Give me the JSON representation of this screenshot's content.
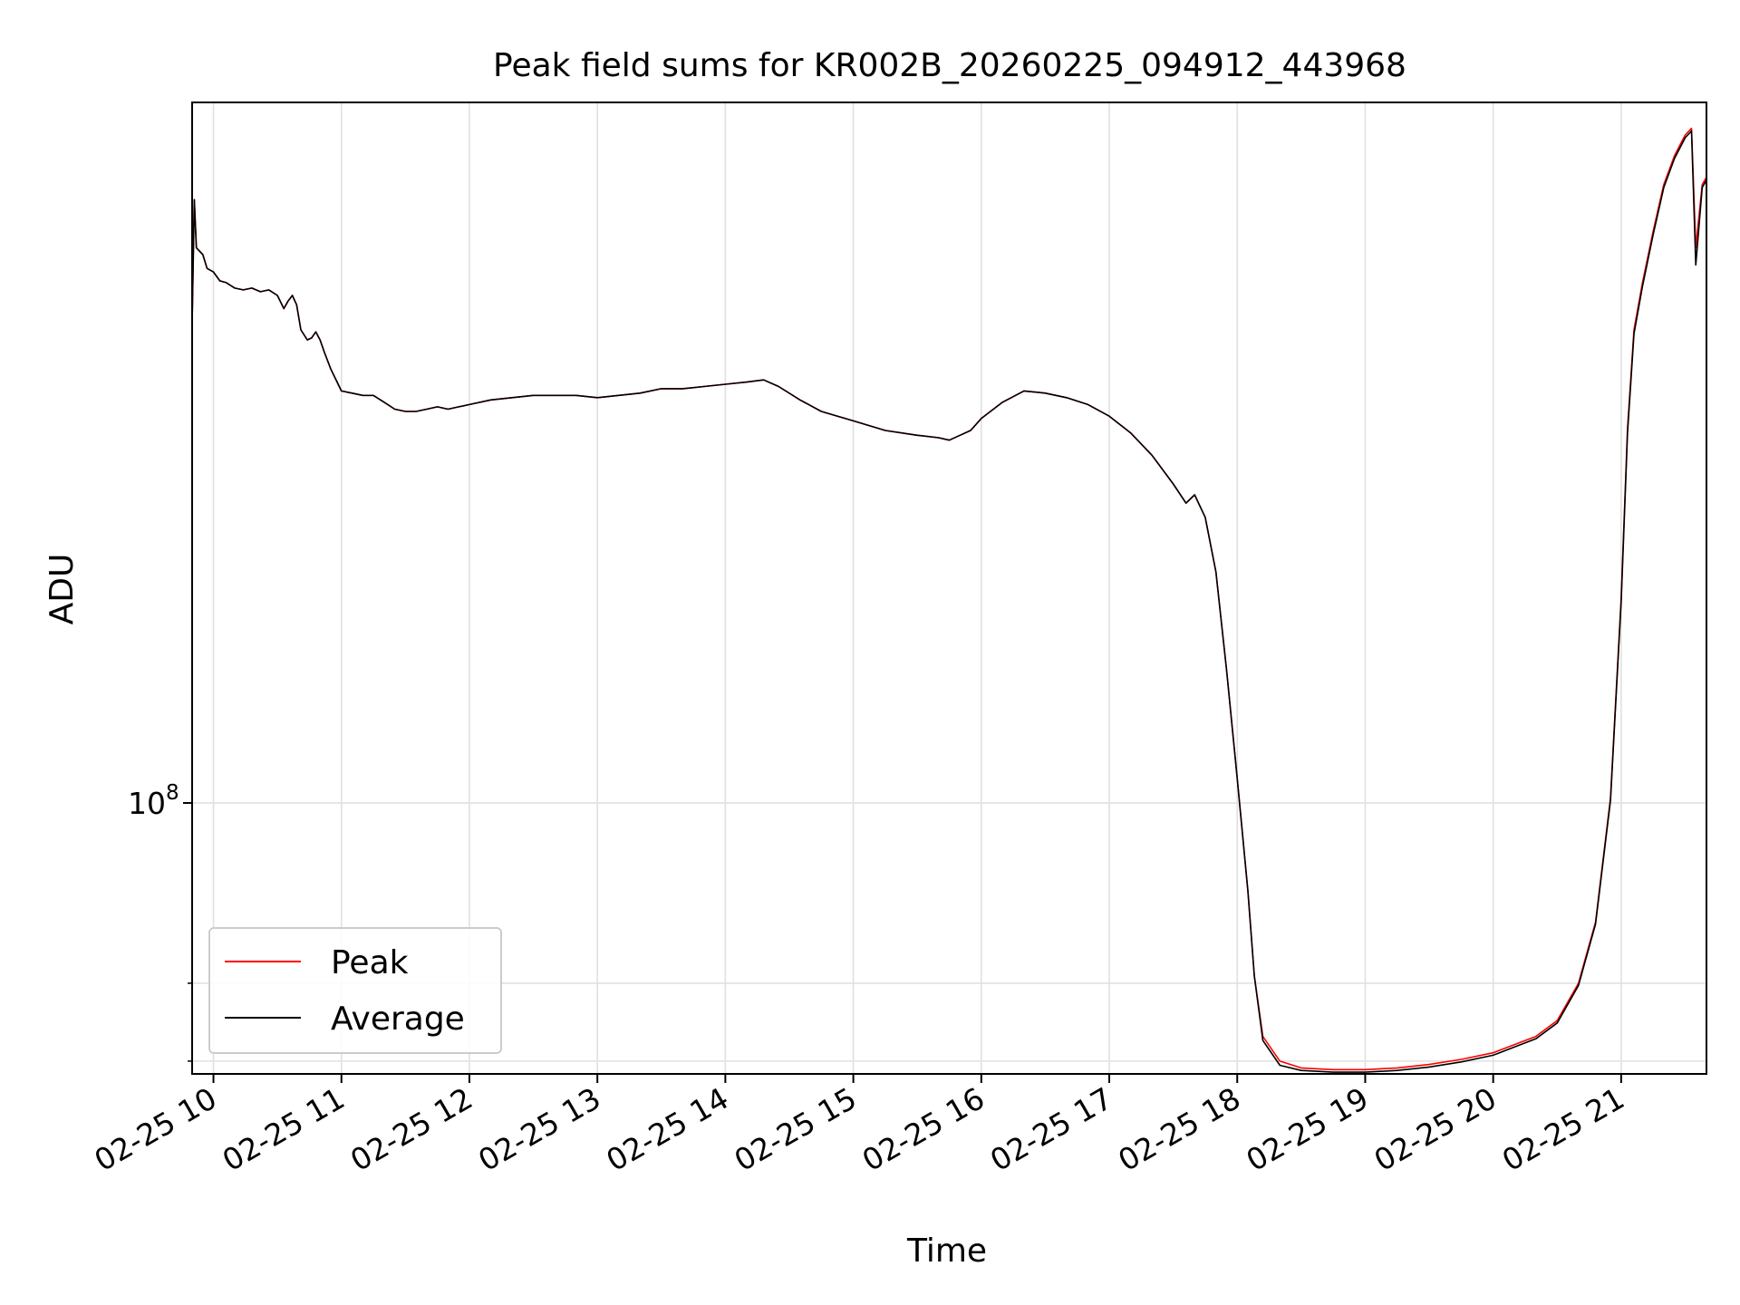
{
  "chart_data": {
    "type": "line",
    "title": "Peak field sums for KR002B_20260225_094912_443968",
    "xlabel": "Time",
    "ylabel": "ADU",
    "x_ticks": [
      "02-25 10",
      "02-25 11",
      "02-25 12",
      "02-25 13",
      "02-25 14",
      "02-25 15",
      "02-25 16",
      "02-25 17",
      "02-25 18",
      "02-25 19",
      "02-25 20",
      "02-25 21"
    ],
    "x_range": [
      "2026-02-25 09:50",
      "2026-02-25 21:40"
    ],
    "y_scale": "log",
    "y_range": [
      58500000,
      400000000
    ],
    "y_major_tick": {
      "value": 100000000,
      "base": "10",
      "exponent": "8"
    },
    "y_minor_ticks": [
      60000000,
      70000000
    ],
    "grid": true,
    "legend_position": "lower-left",
    "series": [
      {
        "name": "Peak",
        "color": "#ff0000",
        "points": [
          [
            "09:50",
            258000000
          ],
          [
            "09:51",
            330000000
          ],
          [
            "09:52",
            300000000
          ],
          [
            "09:55",
            296000000
          ],
          [
            "09:57",
            288000000
          ],
          [
            "10:00",
            286000000
          ],
          [
            "10:03",
            281000000
          ],
          [
            "10:06",
            280000000
          ],
          [
            "10:10",
            277000000
          ],
          [
            "10:14",
            276000000
          ],
          [
            "10:18",
            277000000
          ],
          [
            "10:22",
            275000000
          ],
          [
            "10:26",
            276000000
          ],
          [
            "10:30",
            273000000
          ],
          [
            "10:33",
            266000000
          ],
          [
            "10:35",
            270000000
          ],
          [
            "10:37",
            273000000
          ],
          [
            "10:39",
            268000000
          ],
          [
            "10:41",
            255000000
          ],
          [
            "10:44",
            250000000
          ],
          [
            "10:46",
            251000000
          ],
          [
            "10:48",
            254000000
          ],
          [
            "10:50",
            250000000
          ],
          [
            "10:52",
            244000000
          ],
          [
            "10:55",
            236000000
          ],
          [
            "10:58",
            230000000
          ],
          [
            "11:00",
            226000000
          ],
          [
            "11:05",
            225000000
          ],
          [
            "11:10",
            224000000
          ],
          [
            "11:15",
            224000000
          ],
          [
            "11:20",
            221000000
          ],
          [
            "11:25",
            218000000
          ],
          [
            "11:30",
            217000000
          ],
          [
            "11:35",
            217000000
          ],
          [
            "11:40",
            218000000
          ],
          [
            "11:45",
            219000000
          ],
          [
            "11:50",
            218000000
          ],
          [
            "11:55",
            219000000
          ],
          [
            "12:00",
            220000000
          ],
          [
            "12:10",
            222000000
          ],
          [
            "12:20",
            223000000
          ],
          [
            "12:30",
            224000000
          ],
          [
            "12:40",
            224000000
          ],
          [
            "12:50",
            224000000
          ],
          [
            "13:00",
            223000000
          ],
          [
            "13:10",
            224000000
          ],
          [
            "13:20",
            225000000
          ],
          [
            "13:30",
            227000000
          ],
          [
            "13:40",
            227000000
          ],
          [
            "13:50",
            228000000
          ],
          [
            "14:00",
            229000000
          ],
          [
            "14:10",
            230000000
          ],
          [
            "14:18",
            231000000
          ],
          [
            "14:25",
            228000000
          ],
          [
            "14:35",
            222000000
          ],
          [
            "14:45",
            217000000
          ],
          [
            "15:00",
            213000000
          ],
          [
            "15:15",
            209000000
          ],
          [
            "15:30",
            207000000
          ],
          [
            "15:40",
            206000000
          ],
          [
            "15:45",
            205000000
          ],
          [
            "15:50",
            207000000
          ],
          [
            "15:55",
            209000000
          ],
          [
            "16:00",
            214000000
          ],
          [
            "16:10",
            221000000
          ],
          [
            "16:20",
            226000000
          ],
          [
            "16:30",
            225000000
          ],
          [
            "16:40",
            223000000
          ],
          [
            "16:50",
            220000000
          ],
          [
            "17:00",
            215000000
          ],
          [
            "17:10",
            208000000
          ],
          [
            "17:20",
            199000000
          ],
          [
            "17:30",
            188000000
          ],
          [
            "17:36",
            181000000
          ],
          [
            "17:40",
            184000000
          ],
          [
            "17:45",
            176000000
          ],
          [
            "17:50",
            158000000
          ],
          [
            "17:55",
            130000000
          ],
          [
            "18:00",
            105000000
          ],
          [
            "18:05",
            84000000
          ],
          [
            "18:08",
            71000000
          ],
          [
            "18:12",
            63000000
          ],
          [
            "18:20",
            60000000
          ],
          [
            "18:30",
            59200000
          ],
          [
            "18:45",
            59000000
          ],
          [
            "19:00",
            59000000
          ],
          [
            "19:15",
            59200000
          ],
          [
            "19:30",
            59600000
          ],
          [
            "19:45",
            60200000
          ],
          [
            "20:00",
            61000000
          ],
          [
            "20:10",
            62000000
          ],
          [
            "20:20",
            63000000
          ],
          [
            "20:30",
            65000000
          ],
          [
            "20:40",
            70000000
          ],
          [
            "20:48",
            79000000
          ],
          [
            "20:55",
            101000000
          ],
          [
            "21:00",
            150000000
          ],
          [
            "21:03",
            210000000
          ],
          [
            "21:06",
            255000000
          ],
          [
            "21:10",
            280000000
          ],
          [
            "21:15",
            310000000
          ],
          [
            "21:20",
            340000000
          ],
          [
            "21:25",
            360000000
          ],
          [
            "21:30",
            375000000
          ],
          [
            "21:33",
            380000000
          ],
          [
            "21:35",
            300000000
          ],
          [
            "21:38",
            340000000
          ],
          [
            "21:40",
            345000000
          ]
        ]
      },
      {
        "name": "Average",
        "color": "#000000",
        "points": [
          [
            "09:50",
            258000000
          ],
          [
            "09:51",
            330000000
          ],
          [
            "09:52",
            300000000
          ],
          [
            "09:55",
            296000000
          ],
          [
            "09:57",
            288000000
          ],
          [
            "10:00",
            286000000
          ],
          [
            "10:03",
            281000000
          ],
          [
            "10:06",
            280000000
          ],
          [
            "10:10",
            277000000
          ],
          [
            "10:14",
            276000000
          ],
          [
            "10:18",
            277000000
          ],
          [
            "10:22",
            275000000
          ],
          [
            "10:26",
            276000000
          ],
          [
            "10:30",
            273000000
          ],
          [
            "10:33",
            266000000
          ],
          [
            "10:35",
            270000000
          ],
          [
            "10:37",
            273000000
          ],
          [
            "10:39",
            268000000
          ],
          [
            "10:41",
            255000000
          ],
          [
            "10:44",
            250000000
          ],
          [
            "10:46",
            251000000
          ],
          [
            "10:48",
            254000000
          ],
          [
            "10:50",
            250000000
          ],
          [
            "10:52",
            244000000
          ],
          [
            "10:55",
            236000000
          ],
          [
            "10:58",
            230000000
          ],
          [
            "11:00",
            226000000
          ],
          [
            "11:05",
            225000000
          ],
          [
            "11:10",
            224000000
          ],
          [
            "11:15",
            224000000
          ],
          [
            "11:20",
            221000000
          ],
          [
            "11:25",
            218000000
          ],
          [
            "11:30",
            217000000
          ],
          [
            "11:35",
            217000000
          ],
          [
            "11:40",
            218000000
          ],
          [
            "11:45",
            219000000
          ],
          [
            "11:50",
            218000000
          ],
          [
            "11:55",
            219000000
          ],
          [
            "12:00",
            220000000
          ],
          [
            "12:10",
            222000000
          ],
          [
            "12:20",
            223000000
          ],
          [
            "12:30",
            224000000
          ],
          [
            "12:40",
            224000000
          ],
          [
            "12:50",
            224000000
          ],
          [
            "13:00",
            223000000
          ],
          [
            "13:10",
            224000000
          ],
          [
            "13:20",
            225000000
          ],
          [
            "13:30",
            227000000
          ],
          [
            "13:40",
            227000000
          ],
          [
            "13:50",
            228000000
          ],
          [
            "14:00",
            229000000
          ],
          [
            "14:10",
            230000000
          ],
          [
            "14:18",
            231000000
          ],
          [
            "14:25",
            228000000
          ],
          [
            "14:35",
            222000000
          ],
          [
            "14:45",
            217000000
          ],
          [
            "15:00",
            213000000
          ],
          [
            "15:15",
            209000000
          ],
          [
            "15:30",
            207000000
          ],
          [
            "15:40",
            206000000
          ],
          [
            "15:45",
            205000000
          ],
          [
            "15:50",
            207000000
          ],
          [
            "15:55",
            209000000
          ],
          [
            "16:00",
            214000000
          ],
          [
            "16:10",
            221000000
          ],
          [
            "16:20",
            226000000
          ],
          [
            "16:30",
            225000000
          ],
          [
            "16:40",
            223000000
          ],
          [
            "16:50",
            220000000
          ],
          [
            "17:00",
            215000000
          ],
          [
            "17:10",
            208000000
          ],
          [
            "17:20",
            199000000
          ],
          [
            "17:30",
            188000000
          ],
          [
            "17:36",
            181000000
          ],
          [
            "17:40",
            184000000
          ],
          [
            "17:45",
            176000000
          ],
          [
            "17:50",
            158000000
          ],
          [
            "17:55",
            130000000
          ],
          [
            "18:00",
            105000000
          ],
          [
            "18:05",
            84000000
          ],
          [
            "18:08",
            71000000
          ],
          [
            "18:12",
            62500000
          ],
          [
            "18:20",
            59500000
          ],
          [
            "18:30",
            58900000
          ],
          [
            "18:45",
            58700000
          ],
          [
            "19:00",
            58700000
          ],
          [
            "19:15",
            58900000
          ],
          [
            "19:30",
            59300000
          ],
          [
            "19:45",
            59900000
          ],
          [
            "20:00",
            60700000
          ],
          [
            "20:10",
            61700000
          ],
          [
            "20:20",
            62700000
          ],
          [
            "20:30",
            64700000
          ],
          [
            "20:40",
            69700000
          ],
          [
            "20:48",
            78700000
          ],
          [
            "20:55",
            100500000
          ],
          [
            "21:00",
            149000000
          ],
          [
            "21:03",
            208000000
          ],
          [
            "21:06",
            253000000
          ],
          [
            "21:10",
            278000000
          ],
          [
            "21:15",
            308000000
          ],
          [
            "21:20",
            338000000
          ],
          [
            "21:25",
            358000000
          ],
          [
            "21:30",
            373000000
          ],
          [
            "21:33",
            378000000
          ],
          [
            "21:35",
            290000000
          ],
          [
            "21:38",
            338000000
          ],
          [
            "21:40",
            343000000
          ]
        ]
      }
    ]
  }
}
